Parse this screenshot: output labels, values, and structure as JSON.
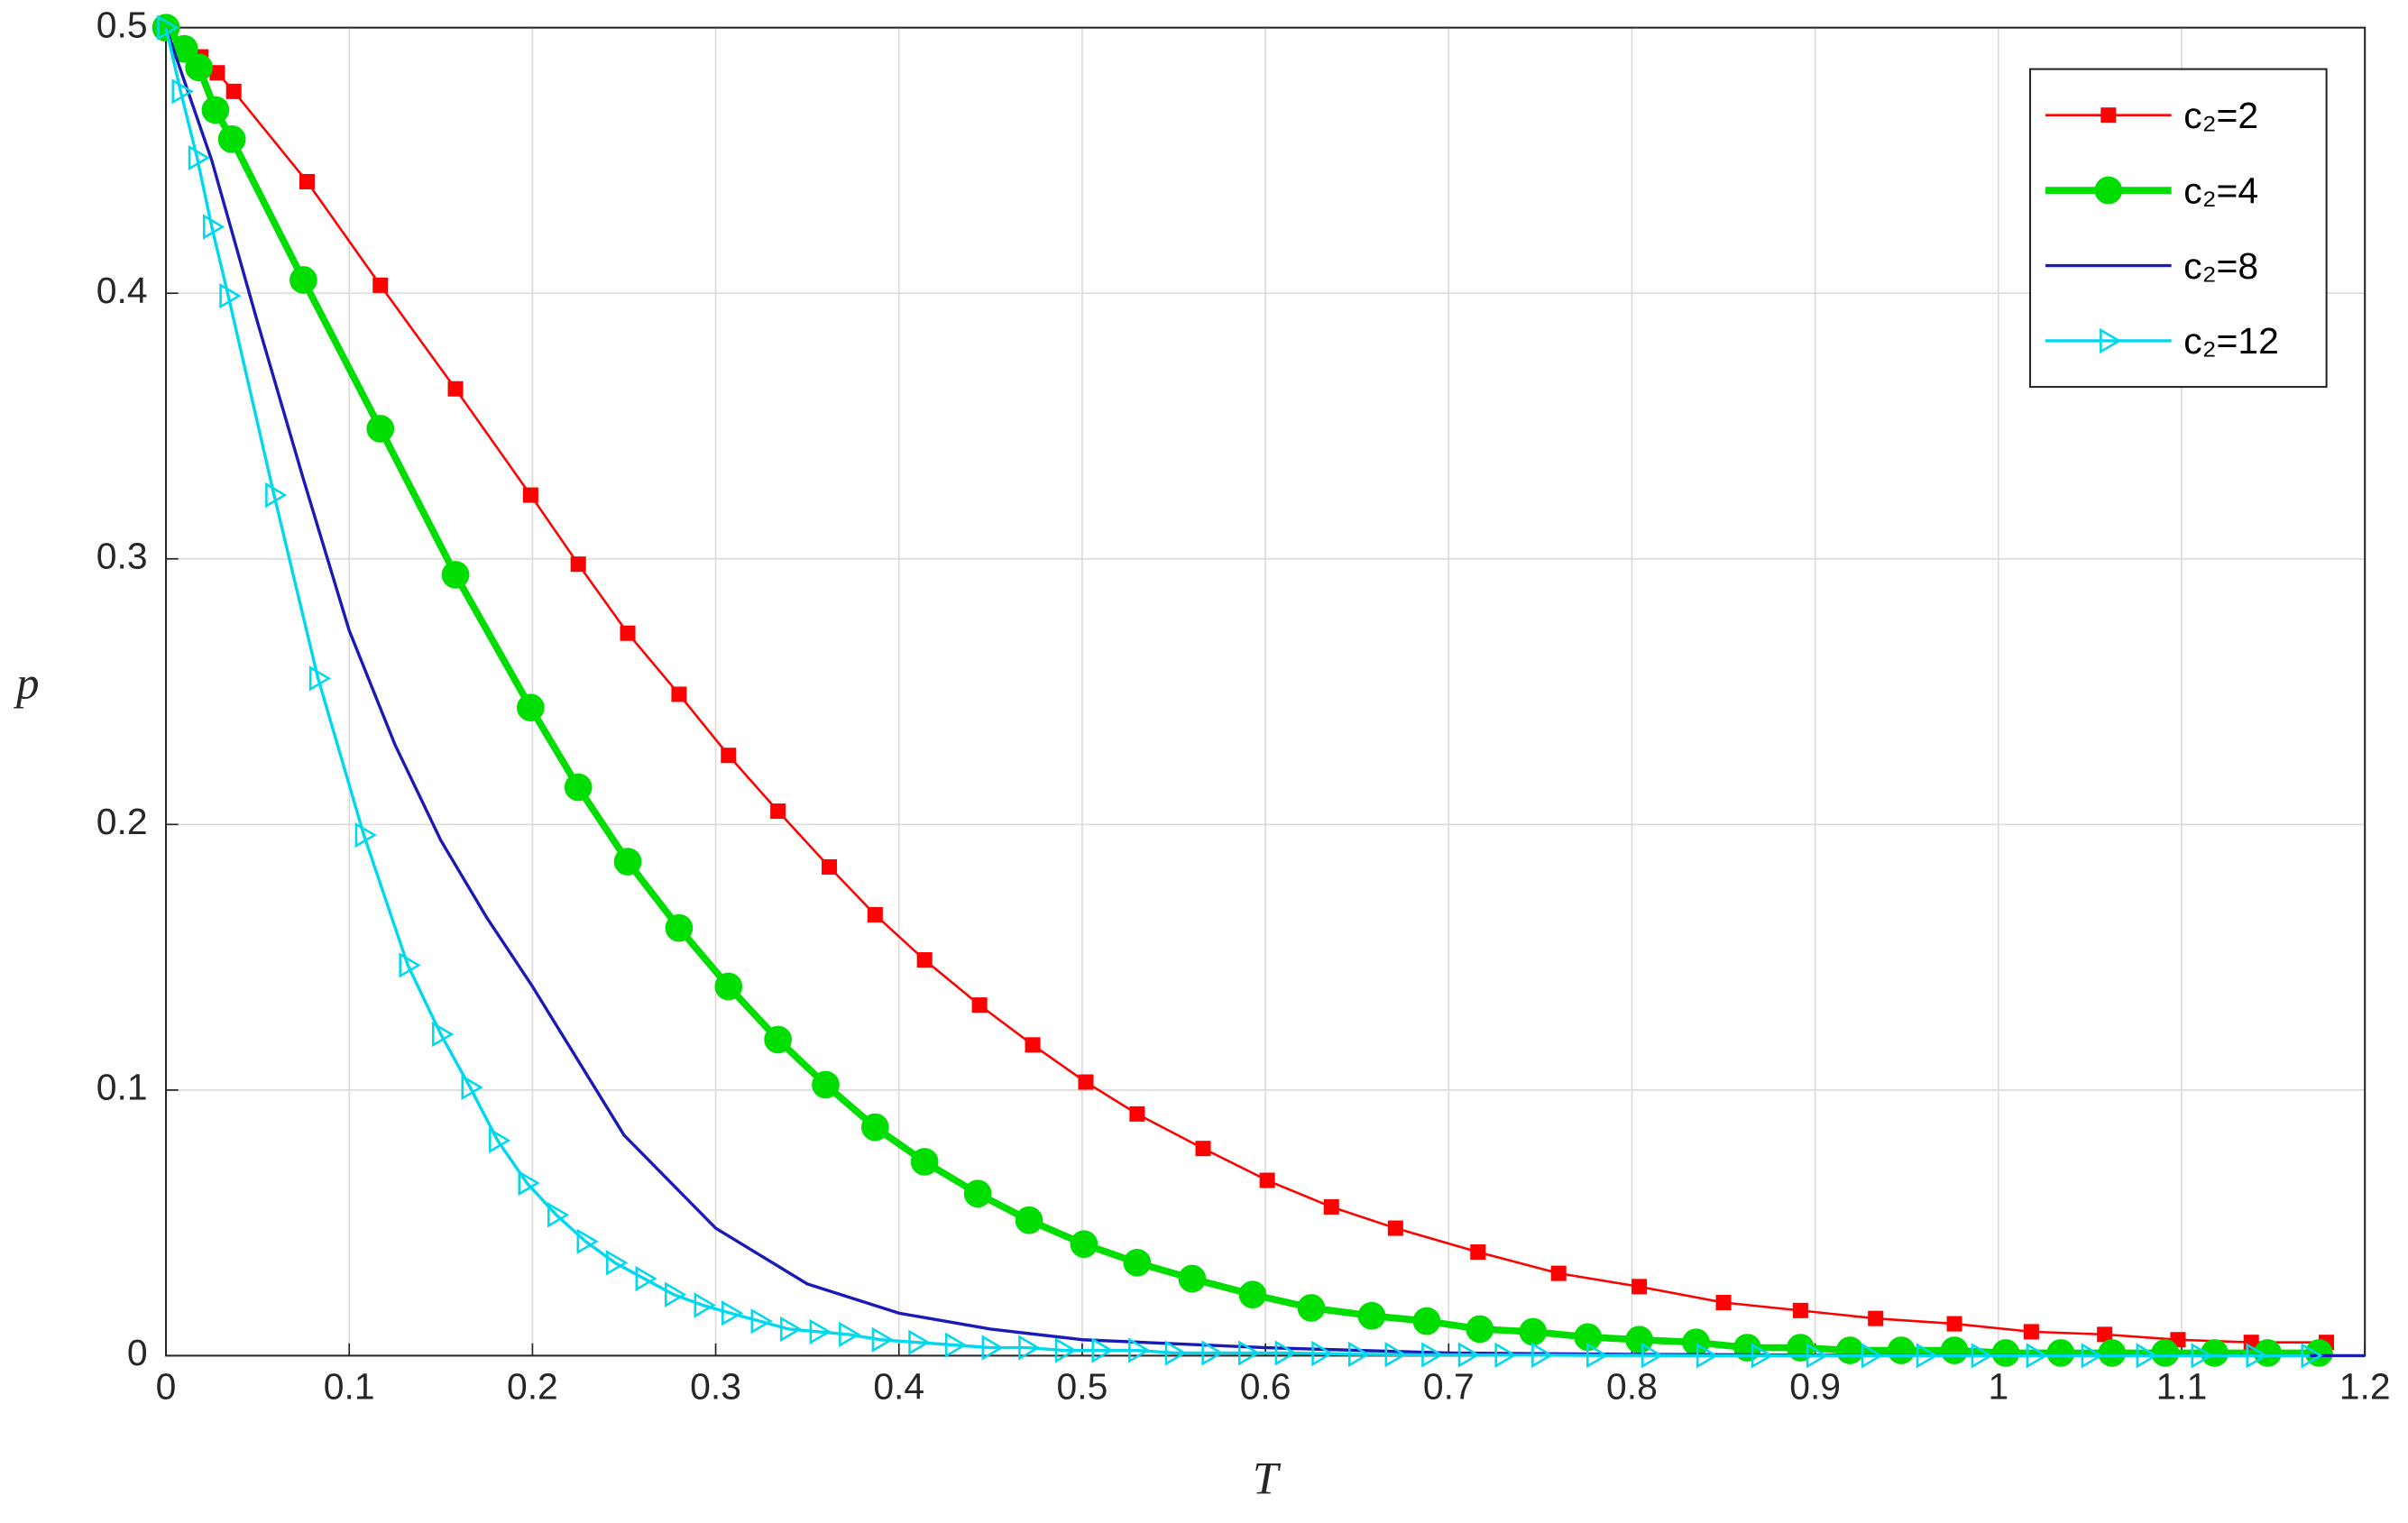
{
  "chart_data": {
    "type": "line",
    "x_label": "T",
    "y_label": "p",
    "xlim": [
      0,
      1.2
    ],
    "ylim": [
      0,
      0.5
    ],
    "xticks": [
      0,
      0.1,
      0.2,
      0.3,
      0.4,
      0.5,
      0.6,
      0.7,
      0.8,
      0.9,
      1,
      1.1,
      1.2
    ],
    "yticks": [
      0,
      0.1,
      0.2,
      0.3,
      0.4,
      0.5
    ],
    "grid": true,
    "legend": "top-right",
    "series": [
      {
        "name": "c₂=2",
        "color": "#ff0000",
        "marker": "square",
        "linewidth": 1.5,
        "x": [
          0,
          0.019,
          0.028,
          0.037,
          0.077,
          0.117,
          0.158,
          0.199,
          0.225,
          0.252,
          0.28,
          0.307,
          0.334,
          0.362,
          0.387,
          0.414,
          0.444,
          0.473,
          0.502,
          0.53,
          0.566,
          0.601,
          0.636,
          0.671,
          0.716,
          0.76,
          0.804,
          0.85,
          0.892,
          0.933,
          0.976,
          1.018,
          1.058,
          1.098,
          1.138,
          1.179
        ],
        "values": [
          0.5,
          0.489,
          0.483,
          0.476,
          0.442,
          0.403,
          0.364,
          0.324,
          0.298,
          0.272,
          0.249,
          0.226,
          0.205,
          0.184,
          0.166,
          0.149,
          0.132,
          0.117,
          0.103,
          0.091,
          0.078,
          0.066,
          0.056,
          0.048,
          0.039,
          0.031,
          0.026,
          0.02,
          0.017,
          0.014,
          0.012,
          0.009,
          0.008,
          0.006,
          0.005,
          0.005
        ]
      },
      {
        "name": "c₂=4",
        "color": "#00dd00",
        "marker": "circle",
        "linewidth": 4.5,
        "x": [
          0,
          0.01,
          0.018,
          0.027,
          0.036,
          0.075,
          0.117,
          0.158,
          0.199,
          0.225,
          0.252,
          0.28,
          0.307,
          0.334,
          0.36,
          0.387,
          0.414,
          0.443,
          0.471,
          0.501,
          0.53,
          0.56,
          0.593,
          0.625,
          0.658,
          0.688,
          0.717,
          0.746,
          0.776,
          0.804,
          0.835,
          0.863,
          0.892,
          0.919,
          0.947,
          0.976,
          1.004,
          1.034,
          1.062,
          1.091,
          1.118,
          1.147,
          1.175
        ],
        "values": [
          0.5,
          0.492,
          0.485,
          0.469,
          0.458,
          0.405,
          0.349,
          0.294,
          0.244,
          0.214,
          0.186,
          0.161,
          0.139,
          0.119,
          0.102,
          0.086,
          0.073,
          0.061,
          0.051,
          0.042,
          0.035,
          0.029,
          0.023,
          0.018,
          0.015,
          0.013,
          0.01,
          0.009,
          0.007,
          0.006,
          0.005,
          0.003,
          0.003,
          0.002,
          0.002,
          0.002,
          0.001,
          0.001,
          0.001,
          0.001,
          0.001,
          0.001,
          0.001
        ]
      },
      {
        "name": "c₂=8",
        "color": "#1a1ab8",
        "marker": "none",
        "linewidth": 2,
        "x": [
          0,
          0.025,
          0.05,
          0.075,
          0.1,
          0.125,
          0.15,
          0.175,
          0.2,
          0.25,
          0.3,
          0.35,
          0.4,
          0.45,
          0.5,
          0.6,
          0.7,
          0.8,
          0.9,
          1,
          1.2
        ],
        "values": [
          0.5,
          0.45,
          0.389,
          0.33,
          0.273,
          0.23,
          0.194,
          0.165,
          0.139,
          0.083,
          0.048,
          0.027,
          0.016,
          0.01,
          0.006,
          0.003,
          0.001,
          0.0005,
          0.0002,
          0.0001,
          0
        ]
      },
      {
        "name": "c₂=12",
        "color": "#00d8ee",
        "marker": "triangle-right",
        "linewidth": 2,
        "x": [
          0,
          0.008,
          0.017,
          0.025,
          0.034,
          0.059,
          0.083,
          0.108,
          0.132,
          0.15,
          0.166,
          0.181,
          0.197,
          0.213,
          0.229,
          0.245,
          0.261,
          0.277,
          0.293,
          0.308,
          0.324,
          0.34,
          0.356,
          0.372,
          0.39,
          0.41,
          0.43,
          0.45,
          0.47,
          0.49,
          0.51,
          0.53,
          0.55,
          0.57,
          0.59,
          0.61,
          0.63,
          0.65,
          0.67,
          0.69,
          0.71,
          0.73,
          0.75,
          0.78,
          0.81,
          0.84,
          0.87,
          0.9,
          0.93,
          0.96,
          0.99,
          1.02,
          1.05,
          1.08,
          1.11,
          1.14,
          1.17
        ],
        "values": [
          0.5,
          0.476,
          0.451,
          0.425,
          0.399,
          0.324,
          0.255,
          0.196,
          0.147,
          0.121,
          0.101,
          0.081,
          0.065,
          0.053,
          0.043,
          0.035,
          0.029,
          0.023,
          0.019,
          0.016,
          0.013,
          0.01,
          0.009,
          0.008,
          0.006,
          0.005,
          0.004,
          0.003,
          0.003,
          0.002,
          0.002,
          0.002,
          0.001,
          0.001,
          0.001,
          0.001,
          0.0008,
          0.0005,
          0.0004,
          0.0003,
          0.0003,
          0.0002,
          0.0002,
          0.0001,
          0.0001,
          0,
          0,
          0,
          0,
          0,
          0,
          0,
          0,
          0,
          0,
          0,
          0
        ]
      }
    ]
  }
}
